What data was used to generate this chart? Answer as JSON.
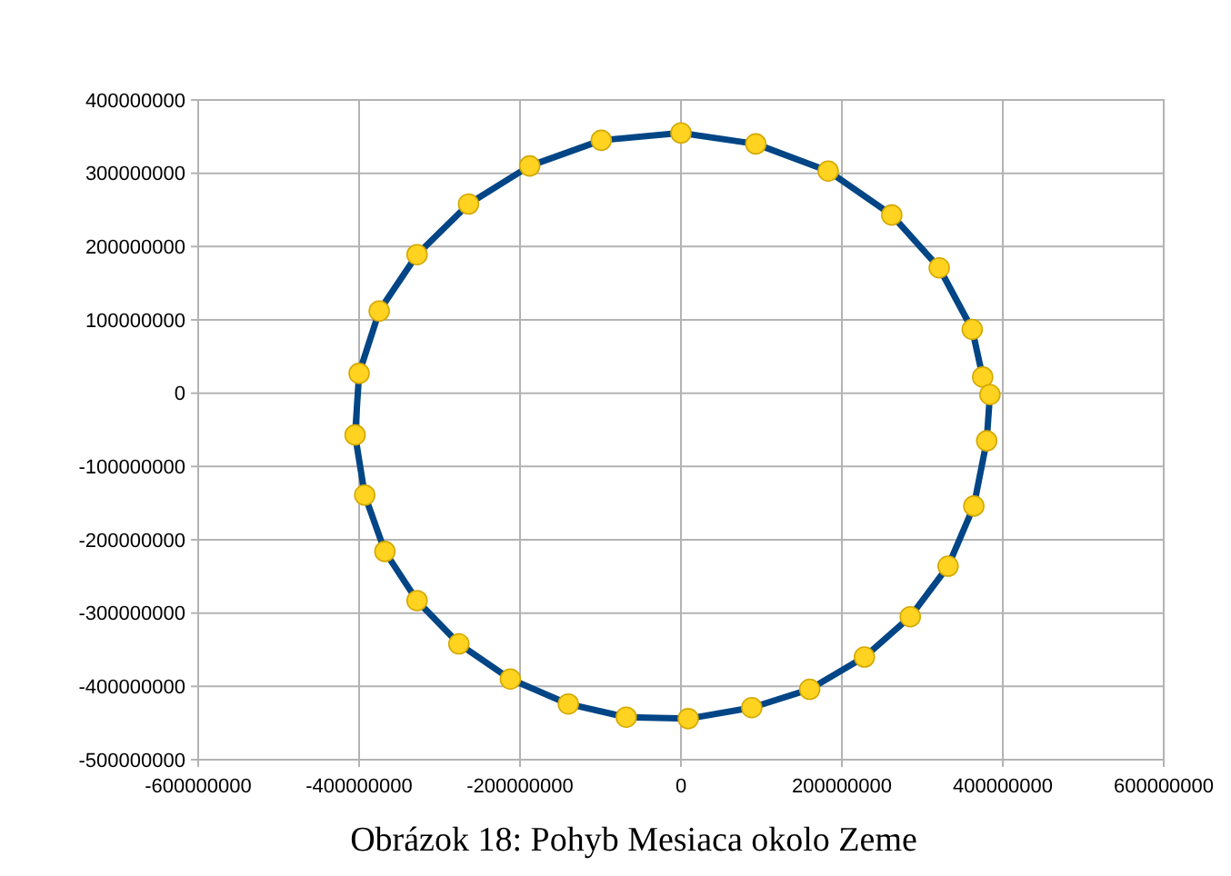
{
  "chart_data": {
    "type": "scatter",
    "title": "Obrázok 18: Pohyb Mesiaca okolo Zeme",
    "xlim": [
      -600000000,
      600000000
    ],
    "xticks": [
      -600000000,
      -400000000,
      -200000000,
      0,
      200000000,
      400000000,
      600000000
    ],
    "ylim": [
      -500000000,
      400000000
    ],
    "yticks": [
      -500000000,
      -400000000,
      -300000000,
      -200000000,
      -100000000,
      0,
      100000000,
      200000000,
      300000000,
      400000000
    ],
    "grid": true,
    "marker": "circle",
    "series": [
      {
        "color": "#ffd320",
        "x": [
          0,
          93000000,
          183000000,
          262000000,
          321000000,
          362000000,
          375000000,
          384000000,
          380000000,
          364000000,
          332000000,
          285000000,
          228000000,
          160000000,
          88000000,
          9000000,
          -68000000,
          -140000000,
          -212000000,
          -276000000,
          -328000000,
          -368000000,
          -393000000,
          -405000000,
          -400000000,
          -375000000,
          -328000000,
          -264000000,
          -188000000,
          -99000000
        ],
        "values": [
          355000000,
          340000000,
          303000000,
          243000000,
          171000000,
          87000000,
          22000000,
          -2000000,
          -65000000,
          -154000000,
          -236000000,
          -305000000,
          -360000000,
          -404000000,
          -429000000,
          -444000000,
          -442000000,
          -424000000,
          -390000000,
          -342000000,
          -283000000,
          -216000000,
          -139000000,
          -57000000,
          27000000,
          112000000,
          189000000,
          258000000,
          310000000,
          345000000
        ]
      }
    ]
  }
}
